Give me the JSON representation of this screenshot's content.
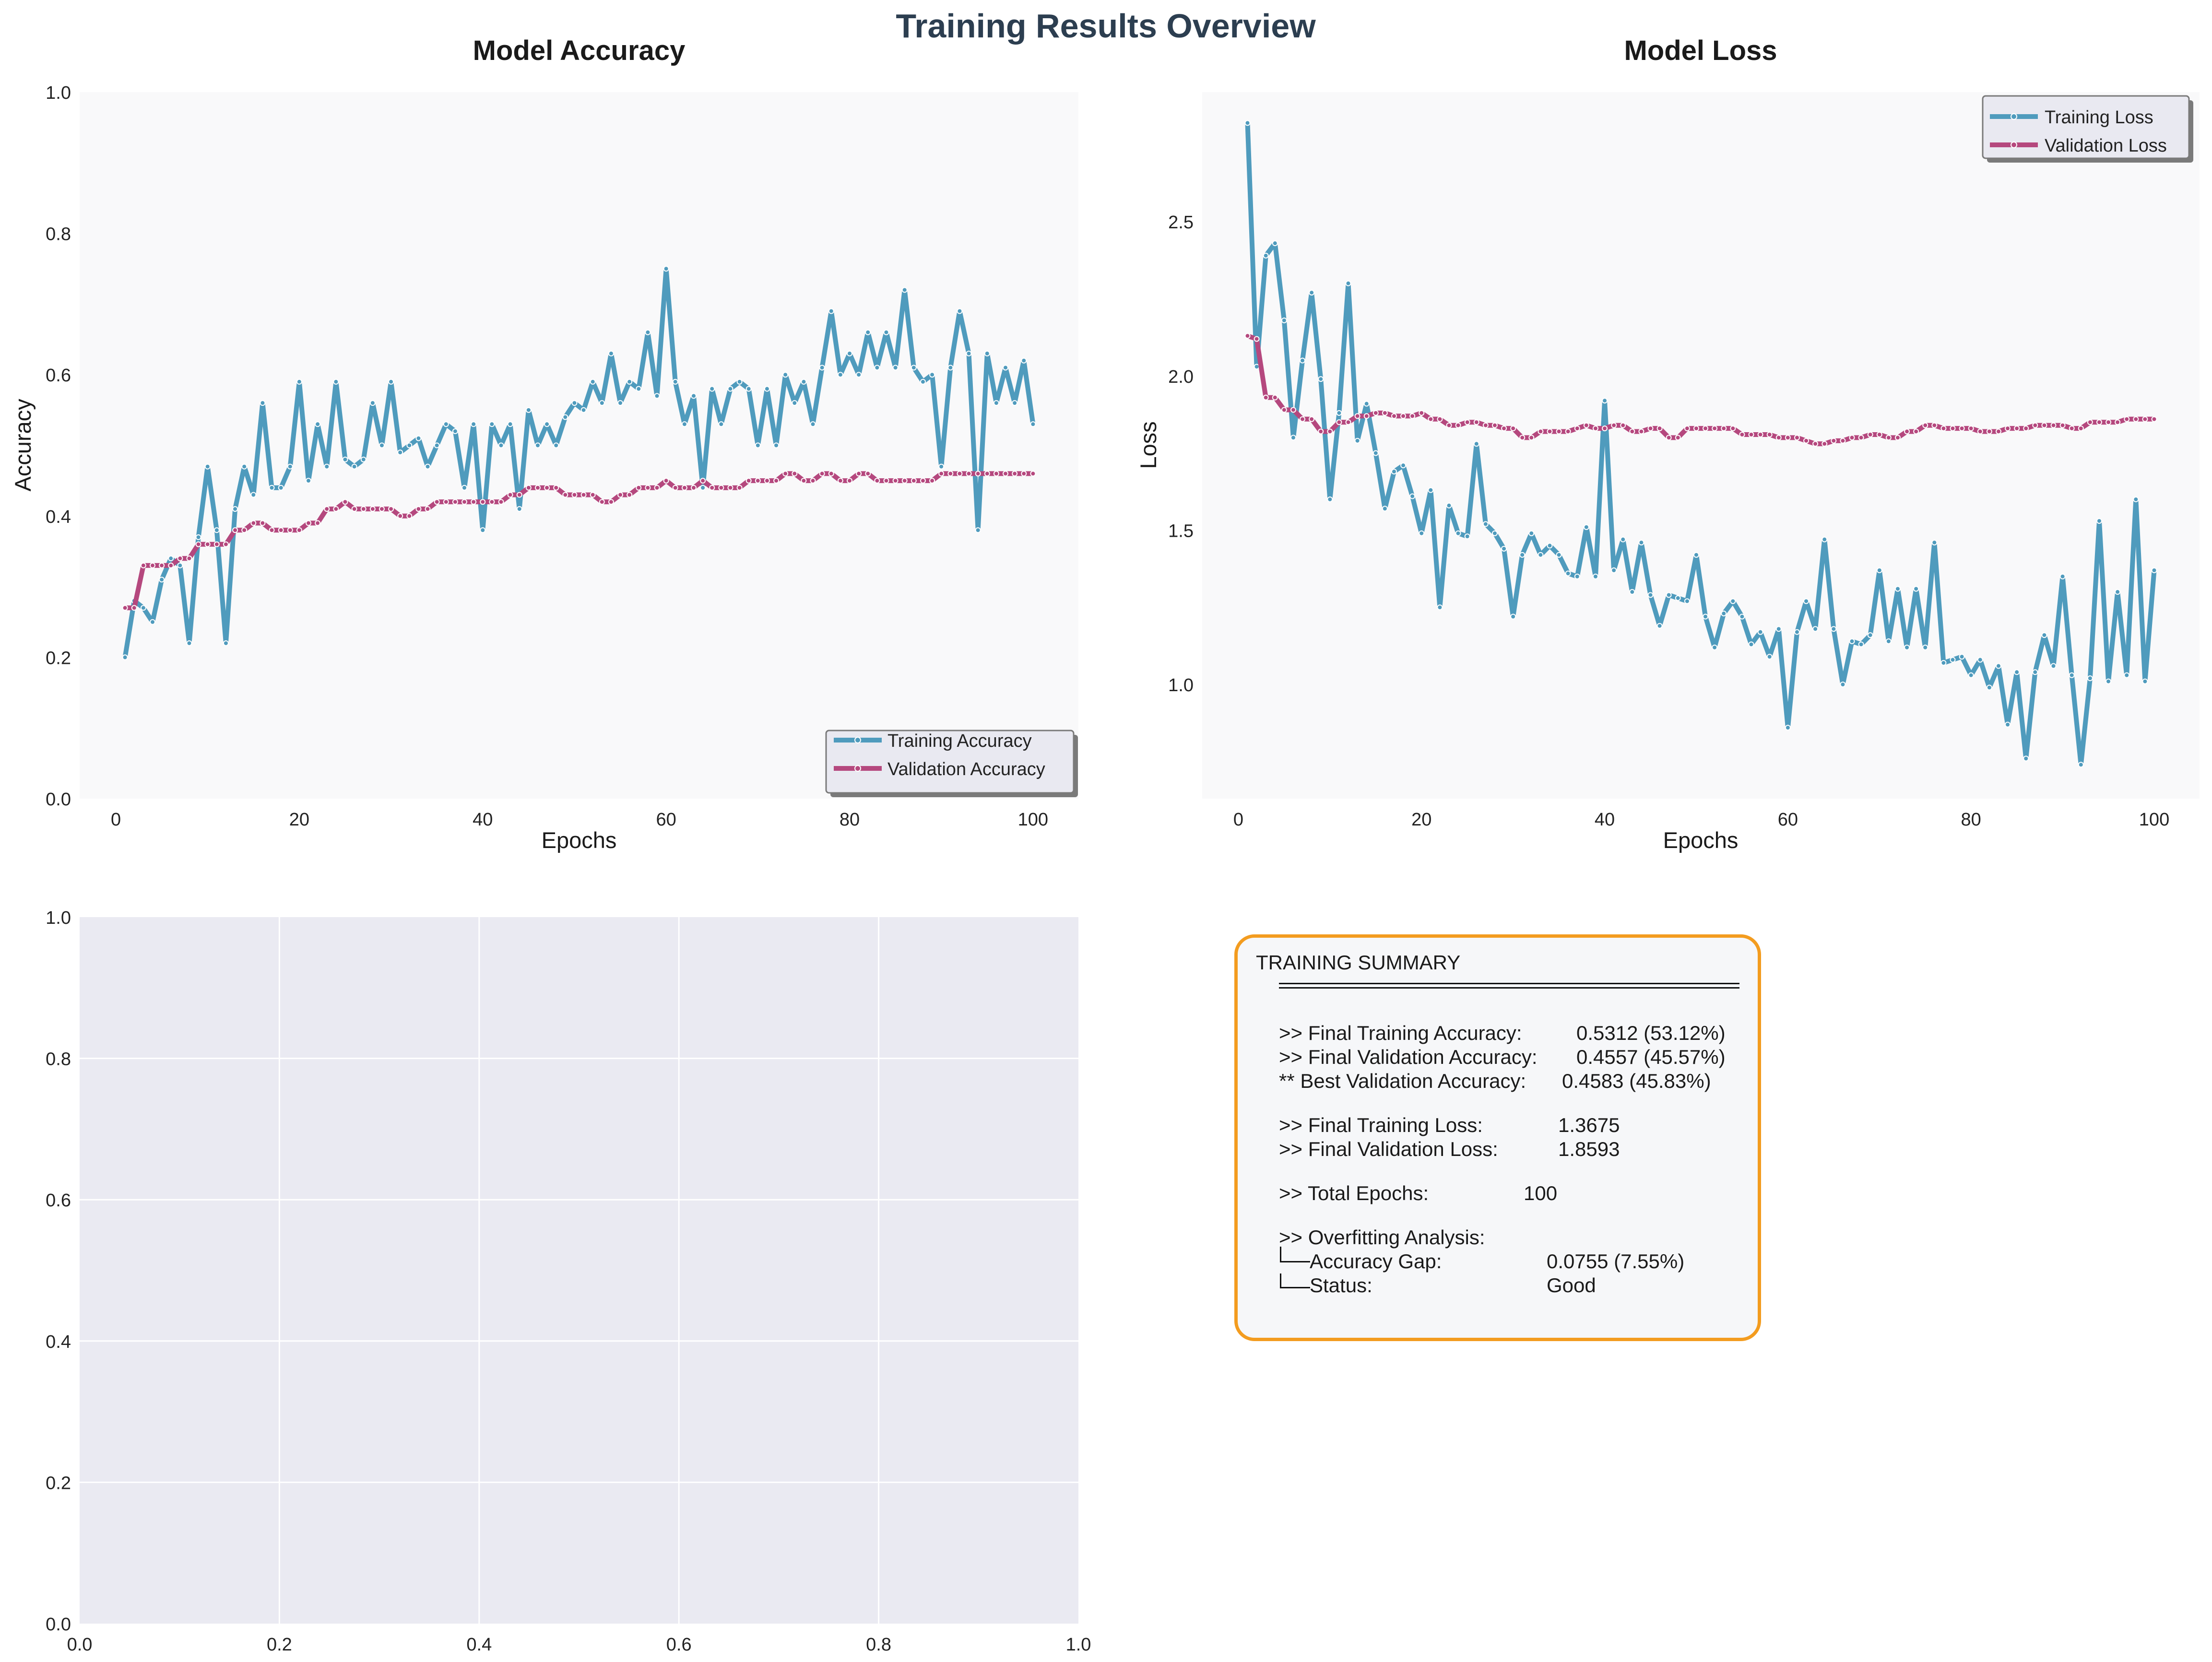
{
  "figure": {
    "title": "Training Results Overview",
    "title_color": "#2c3e50"
  },
  "colors": {
    "training": "#4f9bbd",
    "validation": "#b5487e",
    "plot_bg": "#f9f9fa",
    "empty_bg": "#eaeaf2",
    "summary_border": "#f39c1f"
  },
  "chart_data": [
    {
      "id": "accuracy",
      "type": "line",
      "title": "Model Accuracy",
      "xlabel": "Epochs",
      "ylabel": "Accuracy",
      "xlim": [
        -3.95,
        104.95
      ],
      "ylim": [
        0,
        1
      ],
      "xticks": [
        0,
        20,
        40,
        60,
        80,
        100
      ],
      "yticks": [
        0.0,
        0.2,
        0.4,
        0.6,
        0.8,
        1.0
      ],
      "ytick_labels": [
        "0.0",
        "0.2",
        "0.4",
        "0.6",
        "0.8",
        "1.0"
      ],
      "grid": false,
      "legend": "bottom-right",
      "x": [
        1,
        2,
        3,
        4,
        5,
        6,
        7,
        8,
        9,
        10,
        11,
        12,
        13,
        14,
        15,
        16,
        17,
        18,
        19,
        20,
        21,
        22,
        23,
        24,
        25,
        26,
        27,
        28,
        29,
        30,
        31,
        32,
        33,
        34,
        35,
        36,
        37,
        38,
        39,
        40,
        41,
        42,
        43,
        44,
        45,
        46,
        47,
        48,
        49,
        50,
        51,
        52,
        53,
        54,
        55,
        56,
        57,
        58,
        59,
        60,
        61,
        62,
        63,
        64,
        65,
        66,
        67,
        68,
        69,
        70,
        71,
        72,
        73,
        74,
        75,
        76,
        77,
        78,
        79,
        80,
        81,
        82,
        83,
        84,
        85,
        86,
        87,
        88,
        89,
        90,
        91,
        92,
        93,
        94,
        95,
        96,
        97,
        98,
        99,
        100
      ],
      "series": [
        {
          "name": "Training Accuracy",
          "color": "#4f9bbd",
          "values": [
            0.2,
            0.28,
            0.27,
            0.25,
            0.31,
            0.34,
            0.33,
            0.22,
            0.37,
            0.47,
            0.38,
            0.22,
            0.41,
            0.47,
            0.43,
            0.56,
            0.44,
            0.44,
            0.47,
            0.59,
            0.45,
            0.53,
            0.47,
            0.59,
            0.48,
            0.47,
            0.48,
            0.56,
            0.5,
            0.59,
            0.49,
            0.5,
            0.51,
            0.47,
            0.5,
            0.53,
            0.52,
            0.44,
            0.53,
            0.38,
            0.53,
            0.5,
            0.53,
            0.41,
            0.55,
            0.5,
            0.53,
            0.5,
            0.54,
            0.56,
            0.55,
            0.59,
            0.56,
            0.63,
            0.56,
            0.59,
            0.58,
            0.66,
            0.57,
            0.75,
            0.59,
            0.53,
            0.57,
            0.44,
            0.58,
            0.53,
            0.58,
            0.59,
            0.58,
            0.5,
            0.58,
            0.5,
            0.6,
            0.56,
            0.59,
            0.53,
            0.61,
            0.69,
            0.6,
            0.63,
            0.6,
            0.66,
            0.61,
            0.66,
            0.61,
            0.72,
            0.61,
            0.59,
            0.6,
            0.47,
            0.61,
            0.69,
            0.63,
            0.38,
            0.63,
            0.56,
            0.61,
            0.56,
            0.62,
            0.53
          ]
        },
        {
          "name": "Validation Accuracy",
          "color": "#b5487e",
          "values": [
            0.27,
            0.27,
            0.33,
            0.33,
            0.33,
            0.33,
            0.34,
            0.34,
            0.36,
            0.36,
            0.36,
            0.36,
            0.38,
            0.38,
            0.39,
            0.39,
            0.38,
            0.38,
            0.38,
            0.38,
            0.39,
            0.39,
            0.41,
            0.41,
            0.42,
            0.41,
            0.41,
            0.41,
            0.41,
            0.41,
            0.4,
            0.4,
            0.41,
            0.41,
            0.42,
            0.42,
            0.42,
            0.42,
            0.42,
            0.42,
            0.42,
            0.42,
            0.43,
            0.43,
            0.44,
            0.44,
            0.44,
            0.44,
            0.43,
            0.43,
            0.43,
            0.43,
            0.42,
            0.42,
            0.43,
            0.43,
            0.44,
            0.44,
            0.44,
            0.45,
            0.44,
            0.44,
            0.44,
            0.45,
            0.44,
            0.44,
            0.44,
            0.44,
            0.45,
            0.45,
            0.45,
            0.45,
            0.46,
            0.46,
            0.45,
            0.45,
            0.46,
            0.46,
            0.45,
            0.45,
            0.46,
            0.46,
            0.45,
            0.45,
            0.45,
            0.45,
            0.45,
            0.45,
            0.45,
            0.46,
            0.46,
            0.46,
            0.46,
            0.46,
            0.46,
            0.46,
            0.46,
            0.46,
            0.46,
            0.46
          ]
        }
      ]
    },
    {
      "id": "loss",
      "type": "line",
      "title": "Model Loss",
      "xlabel": "Epochs",
      "ylabel": "Loss",
      "xlim": [
        -3.95,
        104.95
      ],
      "ylim": [
        0.63,
        2.92
      ],
      "xticks": [
        0,
        20,
        40,
        60,
        80,
        100
      ],
      "yticks": [
        1.0,
        1.5,
        2.0,
        2.5
      ],
      "ytick_labels": [
        "1.0",
        "1.5",
        "2.0",
        "2.5"
      ],
      "grid": false,
      "legend": "top-right",
      "x": [
        1,
        2,
        3,
        4,
        5,
        6,
        7,
        8,
        9,
        10,
        11,
        12,
        13,
        14,
        15,
        16,
        17,
        18,
        19,
        20,
        21,
        22,
        23,
        24,
        25,
        26,
        27,
        28,
        29,
        30,
        31,
        32,
        33,
        34,
        35,
        36,
        37,
        38,
        39,
        40,
        41,
        42,
        43,
        44,
        45,
        46,
        47,
        48,
        49,
        50,
        51,
        52,
        53,
        54,
        55,
        56,
        57,
        58,
        59,
        60,
        61,
        62,
        63,
        64,
        65,
        66,
        67,
        68,
        69,
        70,
        71,
        72,
        73,
        74,
        75,
        76,
        77,
        78,
        79,
        80,
        81,
        82,
        83,
        84,
        85,
        86,
        87,
        88,
        89,
        90,
        91,
        92,
        93,
        94,
        95,
        96,
        97,
        98,
        99,
        100
      ],
      "series": [
        {
          "name": "Training Loss",
          "color": "#4f9bbd",
          "values": [
            2.82,
            2.03,
            2.39,
            2.43,
            2.18,
            1.8,
            2.05,
            2.27,
            1.99,
            1.6,
            1.88,
            2.3,
            1.79,
            1.91,
            1.75,
            1.57,
            1.69,
            1.71,
            1.61,
            1.49,
            1.63,
            1.25,
            1.58,
            1.49,
            1.48,
            1.78,
            1.52,
            1.49,
            1.44,
            1.22,
            1.42,
            1.49,
            1.42,
            1.45,
            1.42,
            1.36,
            1.35,
            1.51,
            1.35,
            1.92,
            1.37,
            1.47,
            1.3,
            1.46,
            1.29,
            1.19,
            1.29,
            1.28,
            1.27,
            1.42,
            1.22,
            1.12,
            1.23,
            1.27,
            1.22,
            1.13,
            1.17,
            1.09,
            1.18,
            0.86,
            1.17,
            1.27,
            1.18,
            1.47,
            1.18,
            1.0,
            1.14,
            1.13,
            1.16,
            1.37,
            1.14,
            1.31,
            1.12,
            1.31,
            1.12,
            1.46,
            1.07,
            1.08,
            1.09,
            1.03,
            1.08,
            0.99,
            1.06,
            0.87,
            1.04,
            0.76,
            1.04,
            1.16,
            1.06,
            1.35,
            1.03,
            0.74,
            1.02,
            1.53,
            1.01,
            1.3,
            1.03,
            1.6,
            1.01,
            1.37
          ]
        },
        {
          "name": "Validation Loss",
          "color": "#b5487e",
          "values": [
            2.13,
            2.12,
            1.93,
            1.93,
            1.89,
            1.89,
            1.86,
            1.86,
            1.82,
            1.82,
            1.85,
            1.85,
            1.87,
            1.87,
            1.88,
            1.88,
            1.87,
            1.87,
            1.87,
            1.88,
            1.86,
            1.86,
            1.84,
            1.84,
            1.85,
            1.85,
            1.84,
            1.84,
            1.83,
            1.83,
            1.8,
            1.8,
            1.82,
            1.82,
            1.82,
            1.82,
            1.83,
            1.84,
            1.83,
            1.83,
            1.84,
            1.84,
            1.82,
            1.82,
            1.83,
            1.83,
            1.8,
            1.8,
            1.83,
            1.83,
            1.83,
            1.83,
            1.83,
            1.83,
            1.81,
            1.81,
            1.81,
            1.81,
            1.8,
            1.8,
            1.8,
            1.79,
            1.78,
            1.78,
            1.79,
            1.79,
            1.8,
            1.8,
            1.81,
            1.81,
            1.8,
            1.8,
            1.82,
            1.82,
            1.84,
            1.84,
            1.83,
            1.83,
            1.83,
            1.83,
            1.82,
            1.82,
            1.82,
            1.83,
            1.83,
            1.83,
            1.84,
            1.84,
            1.84,
            1.84,
            1.83,
            1.83,
            1.85,
            1.85,
            1.85,
            1.85,
            1.86,
            1.86,
            1.86,
            1.86
          ]
        }
      ]
    },
    {
      "id": "empty",
      "type": "line",
      "title": "",
      "xlabel": "",
      "ylabel": "",
      "xlim": [
        0,
        1
      ],
      "ylim": [
        0,
        1
      ],
      "xticks": [
        0.0,
        0.2,
        0.4,
        0.6,
        0.8,
        1.0
      ],
      "xtick_labels": [
        "0.0",
        "0.2",
        "0.4",
        "0.6",
        "0.8",
        "1.0"
      ],
      "yticks": [
        0.0,
        0.2,
        0.4,
        0.6,
        0.8,
        1.0
      ],
      "ytick_labels": [
        "0.0",
        "0.2",
        "0.4",
        "0.6",
        "0.8",
        "1.0"
      ],
      "grid": true,
      "series": []
    }
  ],
  "summary": {
    "heading": "TRAINING SUMMARY",
    "rows": [
      {
        "key": ">> Final Training Accuracy:",
        "value": "0.5312 (53.12%)"
      },
      {
        "key": ">> Final Validation Accuracy:",
        "value": "0.4557 (45.57%)"
      },
      {
        "key": "** Best Validation Accuracy:",
        "value": "0.4583 (45.83%)"
      },
      {
        "key": ">> Final Training Loss:",
        "value": "1.3675"
      },
      {
        "key": ">> Final Validation Loss:",
        "value": "1.8593"
      },
      {
        "key": ">> Total Epochs:",
        "value": "100"
      },
      {
        "key": ">> Overfitting Analysis:",
        "value": ""
      }
    ],
    "tree": [
      {
        "key": "Accuracy Gap:",
        "value": "0.0755 (7.55%)"
      },
      {
        "key": "Status:",
        "value": "Good"
      }
    ]
  }
}
